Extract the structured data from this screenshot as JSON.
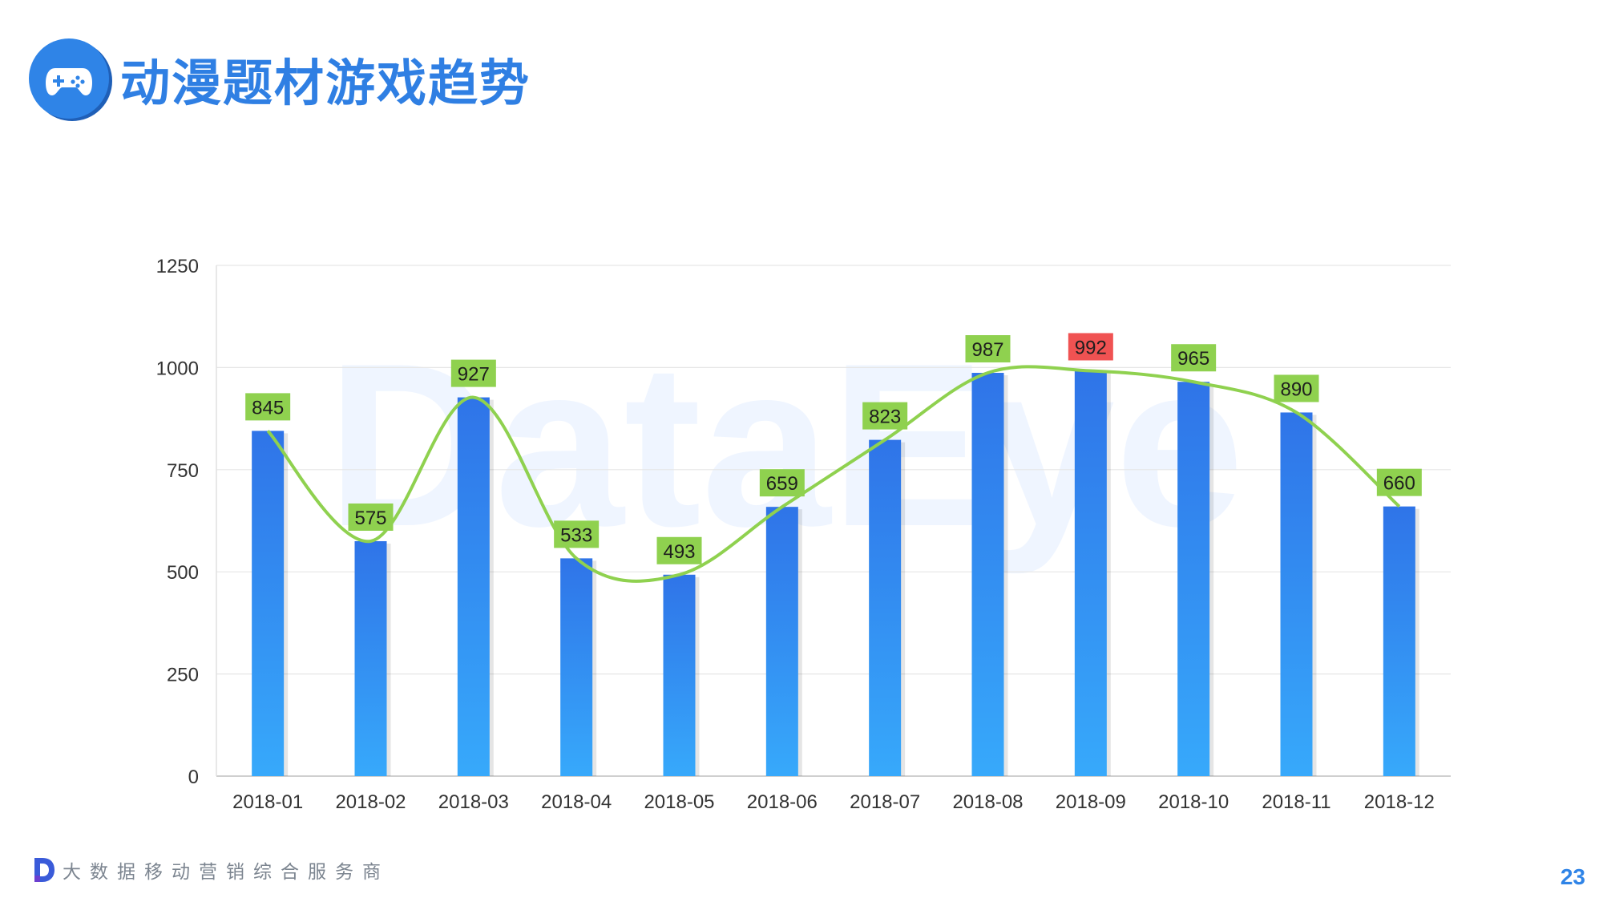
{
  "header": {
    "title": "动漫题材游戏趋势",
    "icon": "gamepad-icon",
    "accent_color": "#2f84e7"
  },
  "watermark": {
    "text": "DataEye"
  },
  "chart_data": {
    "type": "bar",
    "categories": [
      "2018-01",
      "2018-02",
      "2018-03",
      "2018-04",
      "2018-05",
      "2018-06",
      "2018-07",
      "2018-08",
      "2018-09",
      "2018-10",
      "2018-11",
      "2018-12"
    ],
    "values": [
      845,
      575,
      927,
      533,
      493,
      659,
      823,
      987,
      992,
      965,
      890,
      660
    ],
    "overlay": "smoothed-line",
    "ylim": [
      0,
      1250
    ],
    "yticks": [
      0,
      250,
      500,
      750,
      1000,
      1250
    ],
    "grid": true,
    "legend": "none",
    "highlight_max": true,
    "colors": {
      "bar_top": "#2f74e8",
      "bar_bottom": "#37a9fb",
      "line": "#8fd14f",
      "label_bg": "#8fd14f",
      "label_highlight_bg": "#f05252",
      "grid": "#e6e6e6"
    }
  },
  "footer": {
    "icon": "dataeye-d-logo-icon",
    "tagline": "大数据移动营销综合服务商",
    "page_number": "23"
  }
}
